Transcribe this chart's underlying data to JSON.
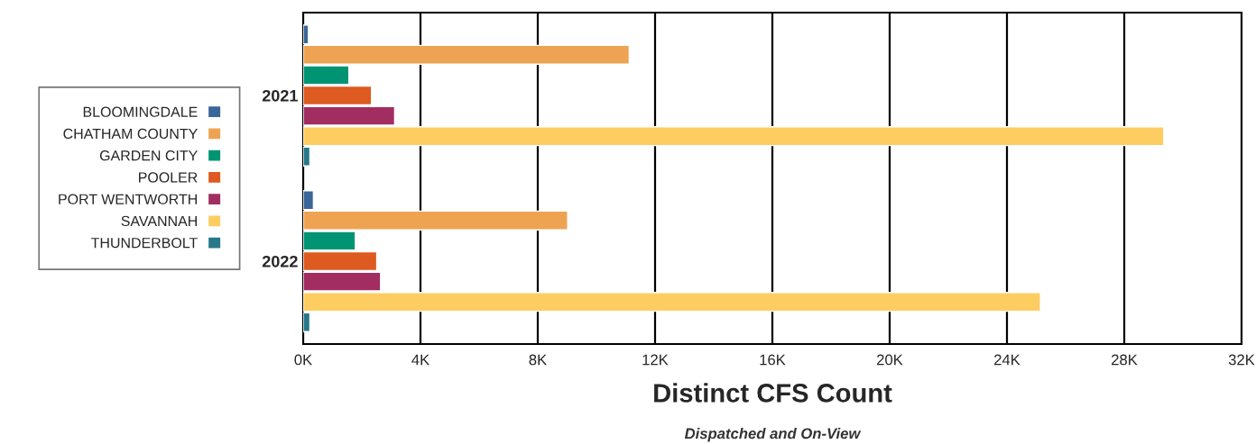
{
  "chart_data": {
    "type": "bar",
    "orientation": "horizontal",
    "xlabel": "Distinct CFS Count",
    "annotations": [
      "Dispatched and On-View"
    ],
    "categories": [
      "2021",
      "2022"
    ],
    "series": [
      {
        "name": "BLOOMINGDALE",
        "color": "#3a6699",
        "values": [
          180,
          350
        ]
      },
      {
        "name": "CHATHAM COUNTY",
        "color": "#eea353",
        "values": [
          11120,
          9020
        ]
      },
      {
        "name": "GARDEN CITY",
        "color": "#009473",
        "values": [
          1560,
          1780
        ]
      },
      {
        "name": "POOLER",
        "color": "#dd5a20",
        "values": [
          2330,
          2510
        ]
      },
      {
        "name": "PORT WENTWORTH",
        "color": "#a22d60",
        "values": [
          3120,
          2640
        ]
      },
      {
        "name": "SAVANNAH",
        "color": "#fecd62",
        "values": [
          29350,
          25140
        ]
      },
      {
        "name": "THUNDERBOLT",
        "color": "#277889",
        "values": [
          230,
          230
        ]
      }
    ],
    "xlim": [
      0,
      32000
    ],
    "xticks": [
      {
        "value": 0,
        "label": "0K"
      },
      {
        "value": 4000,
        "label": "4K"
      },
      {
        "value": 8000,
        "label": "8K"
      },
      {
        "value": 12000,
        "label": "12K"
      },
      {
        "value": 16000,
        "label": "16K"
      },
      {
        "value": 20000,
        "label": "20K"
      },
      {
        "value": 24000,
        "label": "24K"
      },
      {
        "value": 28000,
        "label": "28K"
      },
      {
        "value": 32000,
        "label": "32K"
      }
    ],
    "grid": "x",
    "legend": "left"
  }
}
